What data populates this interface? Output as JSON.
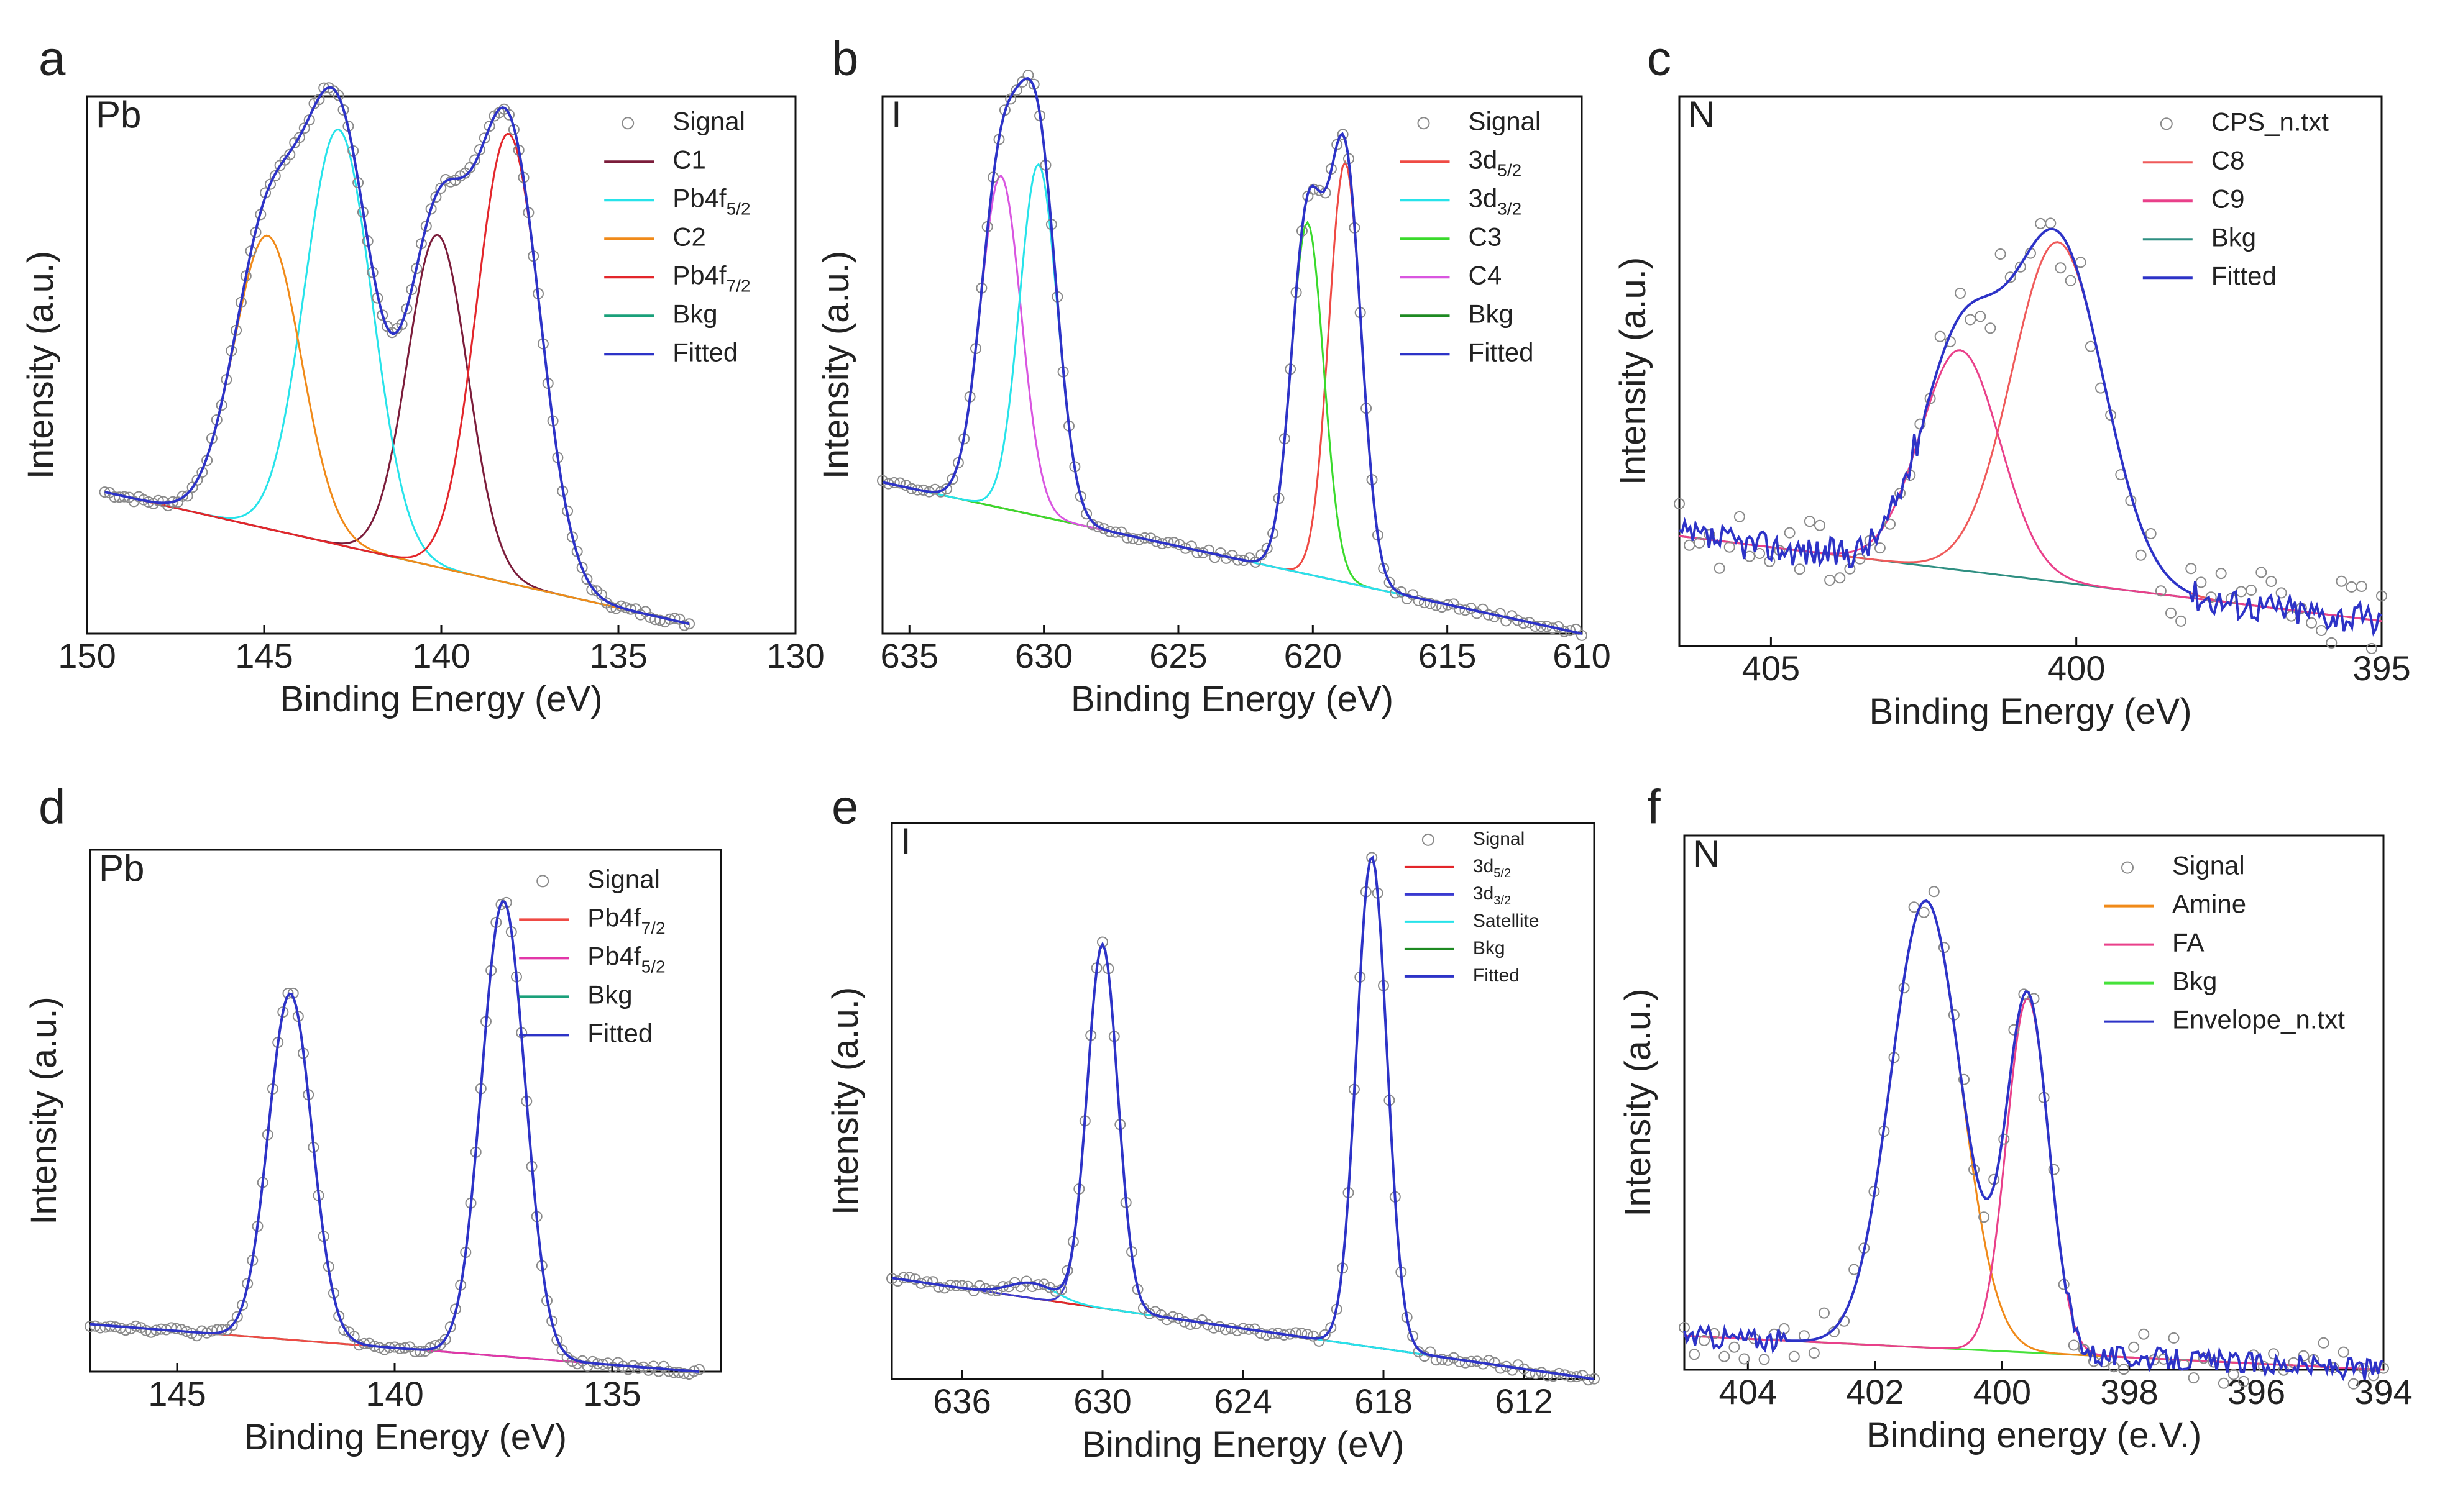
{
  "figure": {
    "panel_count": 6
  },
  "chart_data": [
    {
      "panel": "a",
      "type": "line",
      "element": "Pb",
      "xlabel": "Binding Energy (eV)",
      "ylabel": "Intensity (a.u.)",
      "xlim": [
        150,
        130
      ],
      "ylim": [
        0,
        1.1
      ],
      "xticks": [
        150,
        145,
        140,
        135,
        130
      ],
      "baseline": {
        "start": [
          149.5,
          0.29
        ],
        "end": [
          133,
          0.02
        ]
      },
      "data_range": [
        149.5,
        133
      ],
      "peaks": [
        {
          "name": "C1",
          "center": 140.1,
          "height": 0.68,
          "width": 0.85,
          "color": "#7b1c3a"
        },
        {
          "name": "Pb4f5/2",
          "center": 142.9,
          "height": 0.85,
          "width": 0.95,
          "color": "#27e3ea"
        },
        {
          "name": "C2",
          "center": 144.9,
          "height": 0.6,
          "width": 0.95,
          "color": "#f08a19"
        },
        {
          "name": "Pb4f7/2",
          "center": 138.1,
          "height": 0.92,
          "width": 0.9,
          "color": "#e3262b"
        }
      ],
      "legend": [
        {
          "label": "Signal",
          "style": "marker",
          "color": "#8a8a8a"
        },
        {
          "label": "C1",
          "style": "line",
          "color": "#7b1c3a"
        },
        {
          "label": "Pb4f",
          "sub": "5/2",
          "style": "line",
          "color": "#27e3ea"
        },
        {
          "label": "C2",
          "style": "line",
          "color": "#f08a19"
        },
        {
          "label": "Pb4f",
          "sub": "7/2",
          "style": "line",
          "color": "#e3262b"
        },
        {
          "label": "Bkg",
          "style": "line",
          "color": "#1aa07a"
        },
        {
          "label": "Fitted",
          "style": "line",
          "color": "#2d33c7"
        }
      ]
    },
    {
      "panel": "b",
      "type": "line",
      "element": "I",
      "xlabel": "Binding Energy (eV)",
      "ylabel": "Intensity (a.u.)",
      "xlim": [
        636,
        610
      ],
      "ylim": [
        0,
        1.1
      ],
      "xticks": [
        635,
        630,
        625,
        620,
        615,
        610
      ],
      "baseline": {
        "start": [
          636,
          0.31
        ],
        "end": [
          610,
          0.0
        ]
      },
      "data_range": [
        636,
        610
      ],
      "peaks": [
        {
          "name": "3d5/2",
          "center": 618.8,
          "height": 0.86,
          "width": 0.6,
          "color": "#ef4a44"
        },
        {
          "name": "C3",
          "center": 620.2,
          "height": 0.72,
          "width": 0.6,
          "color": "#3ada2c"
        },
        {
          "name": "C4",
          "center": 631.6,
          "height": 0.68,
          "width": 0.75,
          "color": "#d956e0"
        },
        {
          "name": "3d3/2",
          "center": 630.2,
          "height": 0.72,
          "width": 0.7,
          "color": "#27e3ea"
        }
      ],
      "legend": [
        {
          "label": "Signal",
          "style": "marker",
          "color": "#8a8a8a"
        },
        {
          "label": "3d",
          "sub": "5/2",
          "style": "line",
          "color": "#ef4a44"
        },
        {
          "label": "3d",
          "sub": "3/2",
          "style": "line",
          "color": "#27e3ea"
        },
        {
          "label": "C3",
          "style": "line",
          "color": "#3ada2c"
        },
        {
          "label": "C4",
          "style": "line",
          "color": "#d956e0"
        },
        {
          "label": "Bkg",
          "style": "line",
          "color": "#1e8a22"
        },
        {
          "label": "Fitted",
          "style": "line",
          "color": "#2d33c7"
        }
      ]
    },
    {
      "panel": "c",
      "type": "line",
      "element": "N",
      "xlabel": "Binding Energy (eV)",
      "ylabel": "Intensity (a.u.)",
      "xlim": [
        406.5,
        395
      ],
      "ylim": [
        0,
        1.1
      ],
      "xticks": [
        405,
        400,
        395
      ],
      "baseline": {
        "start": [
          406.5,
          0.22
        ],
        "end": [
          395,
          0.05
        ]
      },
      "data_range": [
        406.5,
        395
      ],
      "noise": 0.07,
      "peaks": [
        {
          "name": "C8",
          "center": 400.3,
          "height": 0.68,
          "width": 0.75,
          "color": "#ef5a5a"
        },
        {
          "name": "C9",
          "center": 401.9,
          "height": 0.44,
          "width": 0.65,
          "color": "#e9408a"
        }
      ],
      "legend": [
        {
          "label": "CPS_n.txt",
          "style": "marker",
          "color": "#8a8a8a"
        },
        {
          "label": "C8",
          "style": "line",
          "color": "#ef5a5a"
        },
        {
          "label": "C9",
          "style": "line",
          "color": "#e9408a"
        },
        {
          "label": "Bkg",
          "style": "line",
          "color": "#2f8f82"
        },
        {
          "label": "Fitted",
          "style": "line",
          "color": "#2d33c7"
        }
      ]
    },
    {
      "panel": "d",
      "type": "line",
      "element": "Pb",
      "xlabel": "Binding Energy (eV)",
      "ylabel": "Intensity (a.u.)",
      "xlim": [
        147,
        132.5
      ],
      "ylim": [
        0,
        1.1
      ],
      "xticks": [
        145,
        140,
        135
      ],
      "baseline": {
        "start": [
          147,
          0.1
        ],
        "end": [
          133,
          0.0
        ]
      },
      "data_range": [
        147,
        133
      ],
      "peaks": [
        {
          "name": "Pb4f7/2",
          "center": 137.5,
          "height": 0.96,
          "width": 0.5,
          "color": "#ef4a44"
        },
        {
          "name": "Pb4f5/2",
          "center": 142.4,
          "height": 0.73,
          "width": 0.5,
          "color": "#e236a8"
        }
      ],
      "legend": [
        {
          "label": "Signal",
          "style": "marker",
          "color": "#8a8a8a"
        },
        {
          "label": "Pb4f",
          "sub": "7/2",
          "style": "line",
          "color": "#ef4a44"
        },
        {
          "label": "Pb4f",
          "sub": "5/2",
          "style": "line",
          "color": "#e236a8"
        },
        {
          "label": "Bkg",
          "style": "line",
          "color": "#1aa07a"
        },
        {
          "label": "Fitted",
          "style": "line",
          "color": "#2d33c7"
        }
      ]
    },
    {
      "panel": "e",
      "type": "line",
      "element": "I",
      "xlabel": "Binding Energy (eV)",
      "ylabel": "Intensity (a.u.)",
      "xlim": [
        639,
        609
      ],
      "ylim": [
        0,
        1.1
      ],
      "xticks": [
        636,
        630,
        624,
        618,
        612
      ],
      "baseline": {
        "start": [
          639,
          0.2
        ],
        "end": [
          609,
          0.0
        ]
      },
      "data_range": [
        639,
        609
      ],
      "peaks": [
        {
          "name": "3d5/2",
          "center": 618.5,
          "height": 0.97,
          "width": 0.65,
          "color": "#e3262b"
        },
        {
          "name": "3d3/2",
          "center": 630.0,
          "height": 0.72,
          "width": 0.65,
          "color": "#3a3ad0"
        },
        {
          "name": "Satellite",
          "center": 633.0,
          "height": 0.03,
          "width": 1.0,
          "color": "#27e3ea"
        }
      ],
      "legend": [
        {
          "label": "Signal",
          "style": "marker",
          "color": "#8a8a8a"
        },
        {
          "label": "3d",
          "sub": "5/2",
          "style": "line",
          "color": "#e3262b"
        },
        {
          "label": "3d",
          "sub": "3/2",
          "style": "line",
          "color": "#3a3ad0"
        },
        {
          "label": "Satellite",
          "style": "line",
          "color": "#27e3ea"
        },
        {
          "label": "Bkg",
          "style": "line",
          "color": "#1e8a22"
        },
        {
          "label": "Fitted",
          "style": "line",
          "color": "#2d33c7"
        }
      ]
    },
    {
      "panel": "f",
      "type": "line",
      "element": "N",
      "xlabel": "Binding energy (e.V.)",
      "ylabel": "Intensity (a.u.)",
      "xlim": [
        405,
        394
      ],
      "ylim": [
        0,
        1.1
      ],
      "xticks": [
        404,
        402,
        400,
        398,
        396,
        394
      ],
      "baseline": {
        "start": [
          405,
          0.07
        ],
        "end": [
          394,
          0.0
        ]
      },
      "data_range": [
        405,
        394
      ],
      "noise": 0.05,
      "peaks": [
        {
          "name": "Amine",
          "center": 401.2,
          "height": 0.92,
          "width": 0.55,
          "color": "#f08a19"
        },
        {
          "name": "FA",
          "center": 399.6,
          "height": 0.73,
          "width": 0.33,
          "color": "#e9408a"
        }
      ],
      "legend": [
        {
          "label": "Signal",
          "style": "marker",
          "color": "#8a8a8a"
        },
        {
          "label": "Amine",
          "style": "line",
          "color": "#f08a19"
        },
        {
          "label": "FA",
          "style": "line",
          "color": "#e9408a"
        },
        {
          "label": "Bkg",
          "style": "line",
          "color": "#46e23a"
        },
        {
          "label": "Envelope_n.txt",
          "style": "line",
          "color": "#2d33c7"
        }
      ]
    }
  ]
}
